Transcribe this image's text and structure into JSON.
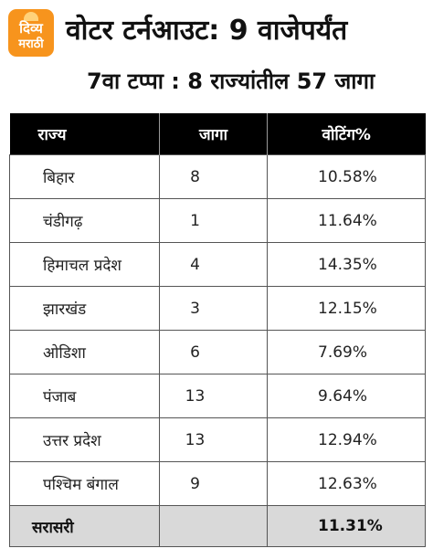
{
  "brand": {
    "line1": "दिव्य",
    "line2": "मराठी",
    "color": "#f7941d"
  },
  "title": "वोटर टर्नआउट: 9 वाजेपर्यंत",
  "subtitle": "7वा टप्पा : 8 राज्यांतील 57 जागा",
  "table": {
    "headers": {
      "state": "राज्य",
      "seats": "जागा",
      "voting": "वोटिंग%"
    },
    "rows": [
      {
        "state": "बिहार",
        "seats": "8",
        "voting": "10.58%"
      },
      {
        "state": "चंडीगढ़",
        "seats": "1",
        "voting": "11.64%"
      },
      {
        "state": "हिमाचल प्रदेश",
        "seats": "4",
        "voting": "14.35%"
      },
      {
        "state": "झारखंड",
        "seats": "3",
        "voting": "12.15%"
      },
      {
        "state": "ओडिशा",
        "seats": "6",
        "voting": "7.69%"
      },
      {
        "state": "पंजाब",
        "seats": "13",
        "voting": "9.64%"
      },
      {
        "state": "उत्तर प्रदेश",
        "seats": "13",
        "voting": "12.94%"
      },
      {
        "state": "पश्चिम बंगाल",
        "seats": "9",
        "voting": "12.63%"
      }
    ],
    "average": {
      "label": "सरासरी",
      "seats": "",
      "voting": "11.31%"
    }
  }
}
